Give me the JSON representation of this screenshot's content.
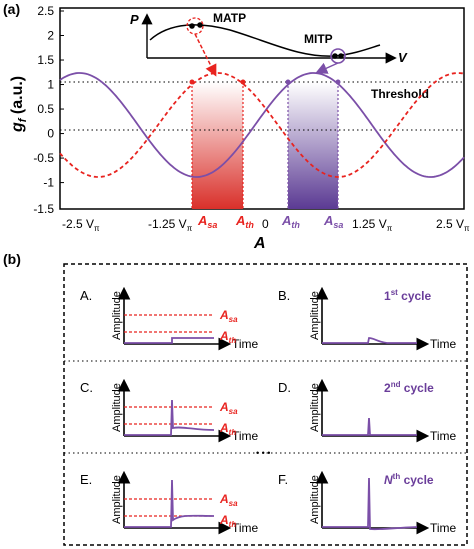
{
  "panel_a": {
    "panel_label": "(a)",
    "y_axis_label": "g",
    "y_axis_sub": "f",
    "y_axis_unit": " (a.u.)",
    "x_axis_label": "A",
    "y_ticks": [
      "2.5",
      "2",
      "1.5",
      "1",
      "0.5",
      "0",
      "-0.5",
      "-1",
      "-1.5"
    ],
    "x_ticks": [
      "-2.5 V",
      "-1.25 V",
      "0",
      "1.25 V",
      "2.5 V"
    ],
    "x_tick_sub": "π",
    "threshold_label": "Threshold",
    "a_sa_label": "A",
    "a_sa_sub": "sa",
    "a_th_label": "A",
    "a_th_sub": "th",
    "inset": {
      "p_label": "P",
      "v_label": "V",
      "matp_label": "MATP",
      "mitp_label": "MITP"
    },
    "colors": {
      "red": "#e8231f",
      "purple": "#7b4fa8",
      "dark_purple": "#6a3d9a"
    }
  },
  "panel_b": {
    "panel_label": "(b)",
    "y_label": "Amplitude",
    "x_label": "Time",
    "a_sa_label": "A",
    "a_sa_sub": "sa",
    "a_th_label": "A",
    "a_th_sub": "th",
    "ellipsis": "• • •",
    "cells": [
      {
        "letter": "A.",
        "cycle": ""
      },
      {
        "letter": "B.",
        "cycle": "1",
        "cycle_sup": "st",
        "cycle_word": " cycle"
      },
      {
        "letter": "C.",
        "cycle": ""
      },
      {
        "letter": "D.",
        "cycle": "2",
        "cycle_sup": "nd",
        "cycle_word": " cycle"
      },
      {
        "letter": "E.",
        "cycle": ""
      },
      {
        "letter": "F.",
        "cycle": "N",
        "cycle_sup": "th",
        "cycle_word": " cycle"
      }
    ]
  }
}
